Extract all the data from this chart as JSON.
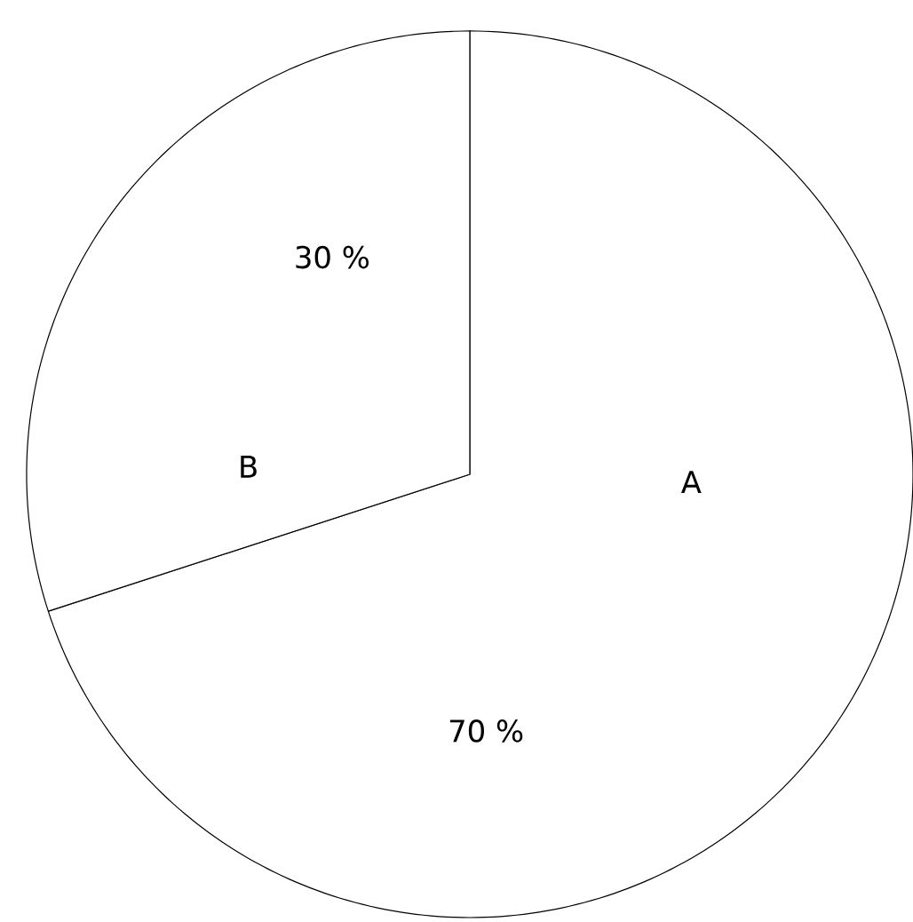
{
  "chart_data": {
    "type": "pie",
    "categories": [
      "A",
      "B"
    ],
    "values": [
      70,
      30
    ],
    "colors": [
      "#ffffff",
      "#ffffff"
    ],
    "value_labels": [
      "70 %",
      "30 %"
    ]
  }
}
